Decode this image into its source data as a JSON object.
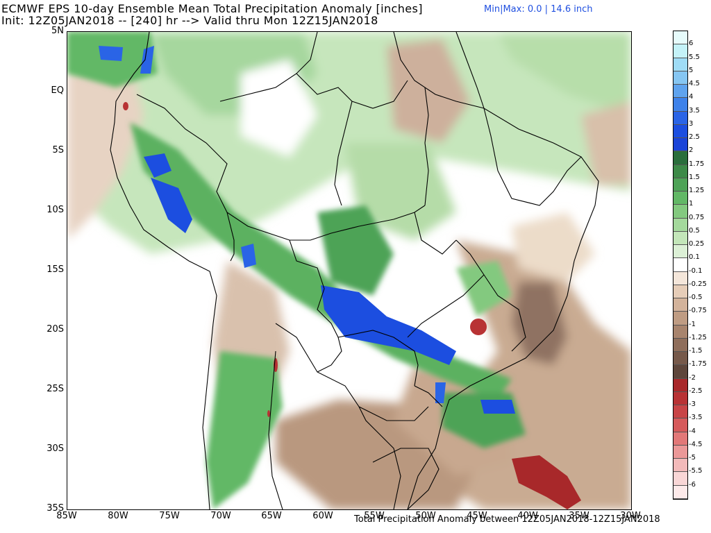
{
  "header": {
    "title_line1": "ECMWF EPS 10-day Ensemble Mean Total Precipitation Anomaly [inches]",
    "minmax": "Min|Max: 0.0 | 14.6 inch",
    "title_line2": "Init: 12Z05JAN2018 -- [240] hr --> Valid thru Mon 12Z15JAN2018"
  },
  "footer": {
    "caption": "Total Precipitation Anomaly between 12Z05JAN2018-12Z15JAN2018"
  },
  "map": {
    "lat_labels": [
      "5N",
      "EQ",
      "5S",
      "10S",
      "15S",
      "20S",
      "25S",
      "30S",
      "35S"
    ],
    "lon_labels": [
      "85W",
      "80W",
      "75W",
      "70W",
      "65W",
      "60W",
      "55W",
      "50W",
      "45W",
      "40W",
      "35W",
      "30W"
    ]
  },
  "colorbar": {
    "labels": [
      "6",
      "5.5",
      "5",
      "4.5",
      "4",
      "3.5",
      "3",
      "2.5",
      "2",
      "1.75",
      "1.5",
      "1.25",
      "1",
      "0.75",
      "0.5",
      "0.25",
      "0.1",
      "-0.1",
      "-0.25",
      "-0.5",
      "-0.75",
      "-1",
      "-1.25",
      "-1.5",
      "-1.75",
      "-2",
      "-2.5",
      "-3",
      "-3.5",
      "-4",
      "-4.5",
      "-5",
      "-5.5",
      "-6"
    ],
    "colors": [
      "#e6fbfb",
      "#c4f2f8",
      "#9fdcf6",
      "#86c6f2",
      "#5fa3ee",
      "#3e82ea",
      "#2a64e6",
      "#1c4ee0",
      "#1a44d8",
      "#2a6e3c",
      "#3d8a48",
      "#4ea357",
      "#62b866",
      "#83c97f",
      "#a4d99c",
      "#c3e6b9",
      "#dcf0d6",
      "#ffffff",
      "#f4e6da",
      "#e6cdb8",
      "#d3b39b",
      "#bf9c83",
      "#a8846d",
      "#8f6e5b",
      "#76594a",
      "#5e463b",
      "#a8282a",
      "#b83234",
      "#c84446",
      "#d65a5b",
      "#e27878",
      "#eb9898",
      "#f3baba",
      "#f9d6d6",
      "#fdeaea"
    ]
  }
}
